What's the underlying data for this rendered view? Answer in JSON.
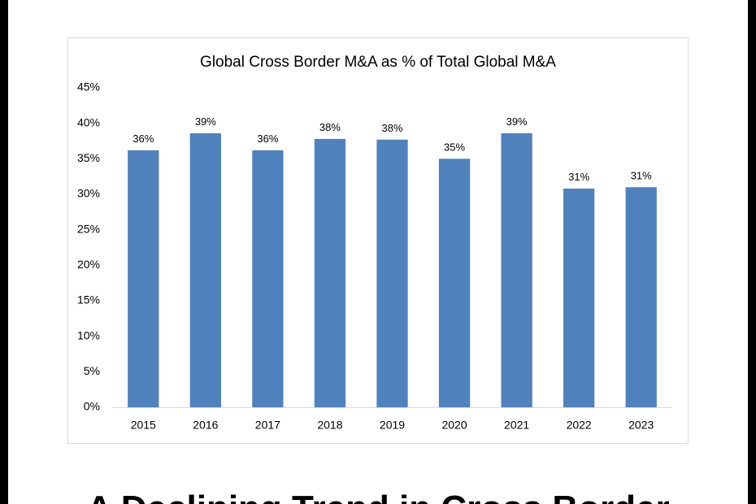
{
  "chart_data": {
    "type": "bar",
    "title": "Global Cross Border M&A as % of Total Global M&A",
    "categories": [
      "2015",
      "2016",
      "2017",
      "2018",
      "2019",
      "2020",
      "2021",
      "2022",
      "2023"
    ],
    "values": [
      36.2,
      38.6,
      36.2,
      37.8,
      37.7,
      35.0,
      38.6,
      30.8,
      31.0
    ],
    "value_labels": [
      "36%",
      "39%",
      "36%",
      "38%",
      "38%",
      "35%",
      "39%",
      "31%",
      "31%"
    ],
    "color": "#4f81bd",
    "ylim": [
      0,
      45
    ],
    "yticks": [
      {
        "value": 0,
        "label": "0%"
      },
      {
        "value": 5,
        "label": "5%"
      },
      {
        "value": 10,
        "label": "10%"
      },
      {
        "value": 15,
        "label": "15%"
      },
      {
        "value": 20,
        "label": "20%"
      },
      {
        "value": 25,
        "label": "25%"
      },
      {
        "value": 30,
        "label": "30%"
      },
      {
        "value": 35,
        "label": "35%"
      },
      {
        "value": 40,
        "label": "40%"
      },
      {
        "value": 45,
        "label": "45%"
      }
    ],
    "grid": false
  },
  "headline": "A Declining Trend in Cross Border"
}
